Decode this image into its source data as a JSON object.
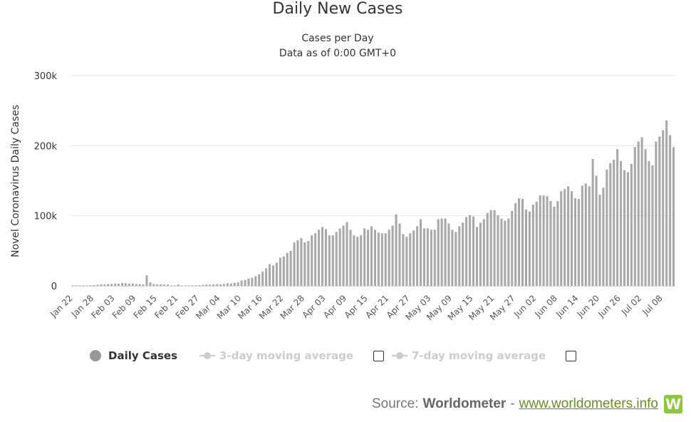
{
  "header": {
    "title": "Daily New Cases",
    "subtitle_line1": "Cases per Day",
    "subtitle_line2": "Data as of 0:00 GMT+0"
  },
  "legend": {
    "daily_cases": "Daily Cases",
    "three_day": "3-day moving average",
    "seven_day": "7-day moving average"
  },
  "source": {
    "prefix": "Source:",
    "name": "Worldometer",
    "separator": "-",
    "link": "www.worldometers.info",
    "logo_letter": "W"
  },
  "colors": {
    "bar": "#a8a8a8",
    "grid": "#e6e6e6",
    "muted_legend": "#cccccc",
    "logo": "#8dc63f",
    "link": "#6b8e23"
  },
  "chart_data": {
    "type": "bar",
    "title": "Daily New Cases",
    "ylabel": "Novel Coronavirus Daily Cases",
    "ylim": [
      0,
      300000
    ],
    "yticks": [
      0,
      100000,
      200000,
      300000
    ],
    "ytick_labels": [
      "0",
      "100k",
      "200k",
      "300k"
    ],
    "xtick_labels": [
      "Jan 22",
      "Jan 28",
      "Feb 03",
      "Feb 09",
      "Feb 15",
      "Feb 21",
      "Feb 27",
      "Mar 04",
      "Mar 10",
      "Mar 16",
      "Mar 22",
      "Mar 28",
      "Apr 03",
      "Apr 09",
      "Apr 15",
      "Apr 21",
      "Apr 27",
      "May 03",
      "May 09",
      "May 15",
      "May 21",
      "May 27",
      "Jun 02",
      "Jun 08",
      "Jun 14",
      "Jun 20",
      "Jun 26",
      "Jul 02",
      "Jul 08"
    ],
    "xtick_every": 6,
    "series": [
      {
        "name": "Daily Cases",
        "values": [
          100,
          100,
          300,
          600,
          700,
          800,
          1200,
          1700,
          2100,
          2000,
          2600,
          2800,
          3200,
          3000,
          3900,
          3700,
          3200,
          3400,
          2700,
          2500,
          2000,
          15000,
          5000,
          2700,
          2100,
          2000,
          1800,
          1900,
          500,
          400,
          1900,
          600,
          400,
          400,
          500,
          600,
          900,
          1400,
          1800,
          1900,
          2200,
          2500,
          2200,
          2600,
          3600,
          3500,
          4300,
          5000,
          7500,
          8300,
          10500,
          11500,
          13700,
          16500,
          20500,
          25000,
          31000,
          29000,
          33000,
          40000,
          42000,
          47000,
          50000,
          62000,
          65000,
          68000,
          62000,
          64000,
          72000,
          75000,
          80000,
          84000,
          81000,
          72000,
          72000,
          77000,
          82000,
          86000,
          91000,
          80000,
          72000,
          70000,
          72000,
          82000,
          80000,
          85000,
          80000,
          76000,
          75000,
          75000,
          80000,
          86000,
          102000,
          89000,
          74000,
          70000,
          75000,
          79000,
          85000,
          95000,
          82000,
          82000,
          80000,
          80000,
          95000,
          96000,
          96000,
          89000,
          80000,
          77000,
          85000,
          90000,
          98000,
          101000,
          99000,
          84000,
          90000,
          95000,
          104000,
          108000,
          108000,
          101000,
          96000,
          93000,
          96000,
          107000,
          118000,
          125000,
          124000,
          109000,
          106000,
          116000,
          120000,
          129000,
          129000,
          128000,
          121000,
          113000,
          121000,
          135000,
          138000,
          142000,
          135000,
          125000,
          124000,
          143000,
          146000,
          142000,
          181000,
          157000,
          130000,
          140000,
          166000,
          175000,
          180000,
          195000,
          178000,
          165000,
          162000,
          174000,
          198000,
          206000,
          212000,
          195000,
          178000,
          172000,
          206000,
          213000,
          222000,
          236000,
          215000,
          198000
        ]
      }
    ],
    "legend_position": "bottom",
    "grid": "horizontal"
  }
}
